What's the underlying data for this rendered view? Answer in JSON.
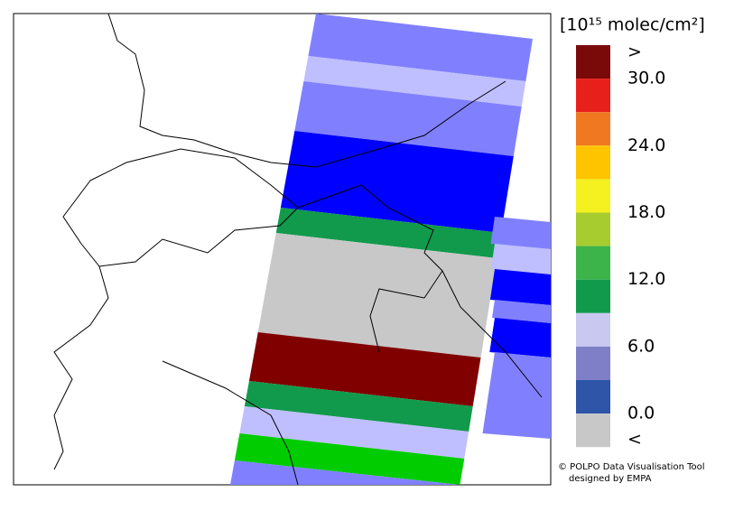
{
  "legend": {
    "unit": "[10¹⁵ molec/cm²]",
    "labels": [
      ">",
      "30.0",
      "24.0",
      "18.0",
      "12.0",
      "6.0",
      "0.0",
      "<"
    ],
    "colors": [
      "#7a0a0a",
      "#e8201c",
      "#f07820",
      "#ffc400",
      "#f5f020",
      "#a6cc30",
      "#3cb44a",
      "#119a4c",
      "#c8c8f0",
      "#7f7fc8",
      "#2e55a8",
      "#c8c8c8"
    ]
  },
  "credit": {
    "line1": "© POLPO Data Visualisation Tool",
    "line2": "designed by EMPA"
  }
}
